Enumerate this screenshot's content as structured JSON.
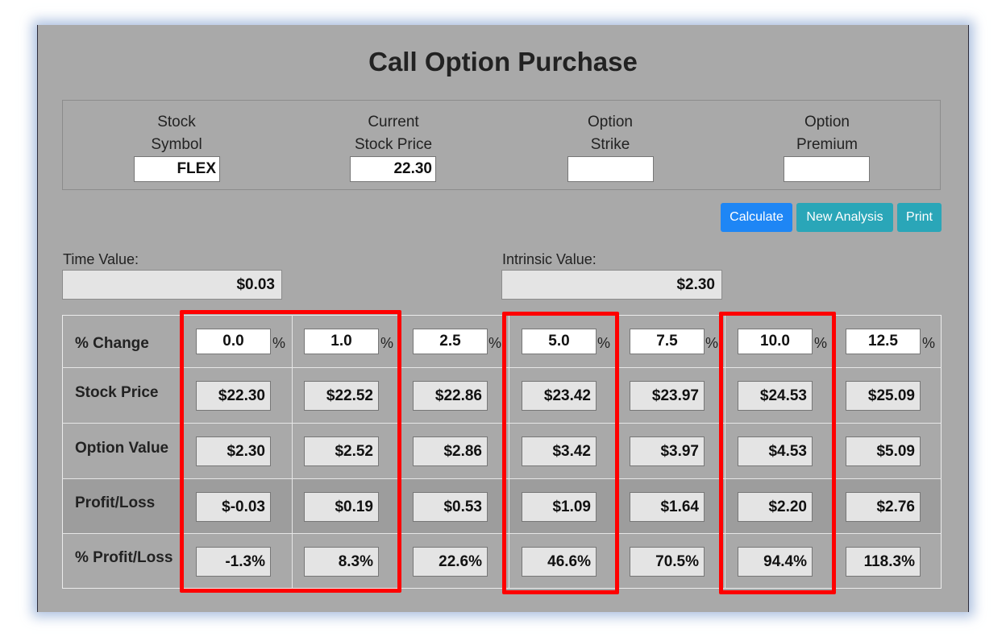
{
  "title": "Call Option Purchase",
  "fields": [
    {
      "label1": "Stock",
      "label2": "Symbol",
      "value": "FLEX"
    },
    {
      "label1": "Current",
      "label2": "Stock Price",
      "value": "22.30"
    },
    {
      "label1": "Option",
      "label2": "Strike",
      "value": ""
    },
    {
      "label1": "Option",
      "label2": "Premium",
      "value": ""
    }
  ],
  "buttons": {
    "calculate": "Calculate",
    "new_analysis": "New Analysis",
    "print": "Print"
  },
  "time_value": {
    "label": "Time Value:",
    "value": "$0.03"
  },
  "intrinsic_value": {
    "label": "Intrinsic Value:",
    "value": "$2.30"
  },
  "table": {
    "row_labels": {
      "pct_change": "% Change",
      "stock_price": "Stock Price",
      "option_value": "Option Value",
      "profit_loss": "Profit/Loss",
      "pct_profit_loss": "% Profit/Loss"
    },
    "pct_sign": "%",
    "columns": [
      {
        "pct": "0.0",
        "stock": "$22.30",
        "option": "$2.30",
        "pl": "$-0.03",
        "pct_pl": "-1.3%"
      },
      {
        "pct": "1.0",
        "stock": "$22.52",
        "option": "$2.52",
        "pl": "$0.19",
        "pct_pl": "8.3%"
      },
      {
        "pct": "2.5",
        "stock": "$22.86",
        "option": "$2.86",
        "pl": "$0.53",
        "pct_pl": "22.6%"
      },
      {
        "pct": "5.0",
        "stock": "$23.42",
        "option": "$3.42",
        "pl": "$1.09",
        "pct_pl": "46.6%"
      },
      {
        "pct": "7.5",
        "stock": "$23.97",
        "option": "$3.97",
        "pl": "$1.64",
        "pct_pl": "70.5%"
      },
      {
        "pct": "10.0",
        "stock": "$24.53",
        "option": "$4.53",
        "pl": "$2.20",
        "pct_pl": "94.4%"
      },
      {
        "pct": "12.5",
        "stock": "$25.09",
        "option": "$5.09",
        "pl": "$2.76",
        "pct_pl": "118.3%"
      }
    ]
  },
  "colors": {
    "background": "#a9a9a9",
    "highlight": "#ff0000",
    "primary_button": "#1e86f5",
    "info_button": "#2aa6b8"
  }
}
